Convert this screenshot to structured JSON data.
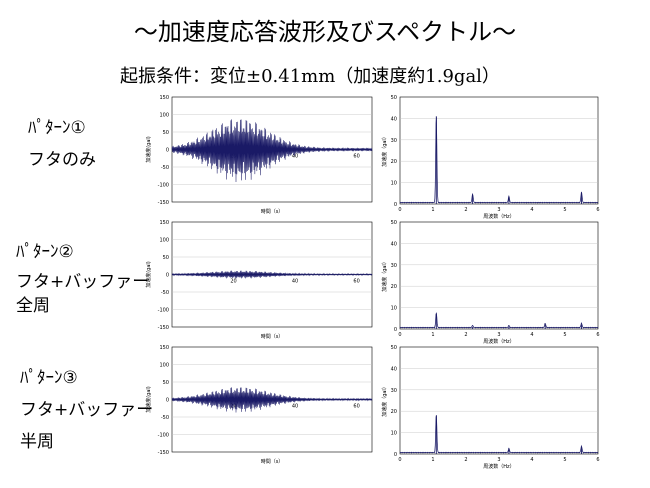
{
  "title": "～加速度応答波形及びスペクトル～",
  "subtitle": "起振条件：変位±0.41mm（加速度約1.9gal）",
  "patterns": [
    {
      "name": "ﾊﾟﾀｰﾝ①",
      "lines": [
        "フタのみ"
      ]
    },
    {
      "name": "ﾊﾟﾀｰﾝ②",
      "lines": [
        "フタ+バッファー",
        "全周"
      ]
    },
    {
      "name": "ﾊﾟﾀｰﾝ③",
      "lines": [
        "フタ+バッファー",
        "半周"
      ]
    }
  ],
  "colors": {
    "series": "#1a1a66",
    "grid": "#bfbfbf",
    "axis": "#000000"
  },
  "chart_data": [
    {
      "type": "line",
      "panel": "time",
      "row": 1,
      "xlabel": "時間（s）",
      "ylabel": "加速度(gal)",
      "xlim": [
        0,
        65
      ],
      "ylim": [
        -150,
        150
      ],
      "yticks": [
        150,
        100,
        50,
        0,
        -50,
        -100,
        -150
      ],
      "xticks": [
        20,
        40,
        60
      ],
      "xticklabels": [
        "20",
        "40",
        "60"
      ],
      "envelope_peak": 95,
      "envelope_floor": 5,
      "values_note_center": [
        20,
        40,
        60
      ]
    },
    {
      "type": "line",
      "panel": "spectrum",
      "row": 1,
      "xlabel": "周波数（Hz）",
      "ylabel": "加速度（gal）",
      "xlim": [
        0,
        6
      ],
      "ylim": [
        0,
        50
      ],
      "yticks": [
        0,
        10,
        20,
        30,
        40,
        50
      ],
      "xticks": [
        0,
        1,
        2,
        3,
        4,
        5,
        6
      ],
      "x": [
        1.1,
        2.2,
        3.3,
        5.5
      ],
      "values": [
        41,
        4,
        3,
        5
      ]
    },
    {
      "type": "line",
      "panel": "time",
      "row": 2,
      "xlabel": "時間（s）",
      "ylabel": "加速度(gal)",
      "xlim": [
        0,
        65
      ],
      "ylim": [
        -150,
        150
      ],
      "yticks": [
        150,
        100,
        50,
        0,
        -50,
        -100,
        -150
      ],
      "xticks": [
        20,
        40,
        60
      ],
      "xticklabels": [
        "20",
        "40",
        "60"
      ],
      "envelope_peak": 12,
      "envelope_floor": 2
    },
    {
      "type": "line",
      "panel": "spectrum",
      "row": 2,
      "xlabel": "周波数（Hz）",
      "ylabel": "加速度（gal）",
      "xlim": [
        0,
        6
      ],
      "ylim": [
        0,
        50
      ],
      "yticks": [
        0,
        10,
        20,
        30,
        40,
        50
      ],
      "xticks": [
        0,
        1,
        2,
        3,
        4,
        5,
        6
      ],
      "x": [
        1.1,
        2.2,
        3.3,
        4.4,
        5.5
      ],
      "values": [
        7,
        1,
        1,
        2,
        2
      ]
    },
    {
      "type": "line",
      "panel": "time",
      "row": 3,
      "xlabel": "時間（s）",
      "ylabel": "加速度(gal)",
      "xlim": [
        0,
        65
      ],
      "ylim": [
        -150,
        150
      ],
      "yticks": [
        150,
        100,
        50,
        0,
        -50,
        -100,
        -150
      ],
      "xticks": [
        20,
        40,
        60
      ],
      "xticklabels": [
        "20",
        "40",
        "60"
      ],
      "envelope_peak": 38,
      "envelope_floor": 3
    },
    {
      "type": "line",
      "panel": "spectrum",
      "row": 3,
      "xlabel": "周波数（Hz）",
      "ylabel": "加速度（gal）",
      "xlim": [
        0,
        6
      ],
      "ylim": [
        0,
        50
      ],
      "yticks": [
        0,
        10,
        20,
        30,
        40,
        50
      ],
      "xticks": [
        0,
        1,
        2,
        3,
        4,
        5,
        6
      ],
      "x": [
        1.1,
        3.3,
        5.5
      ],
      "values": [
        18,
        2,
        3
      ]
    }
  ]
}
